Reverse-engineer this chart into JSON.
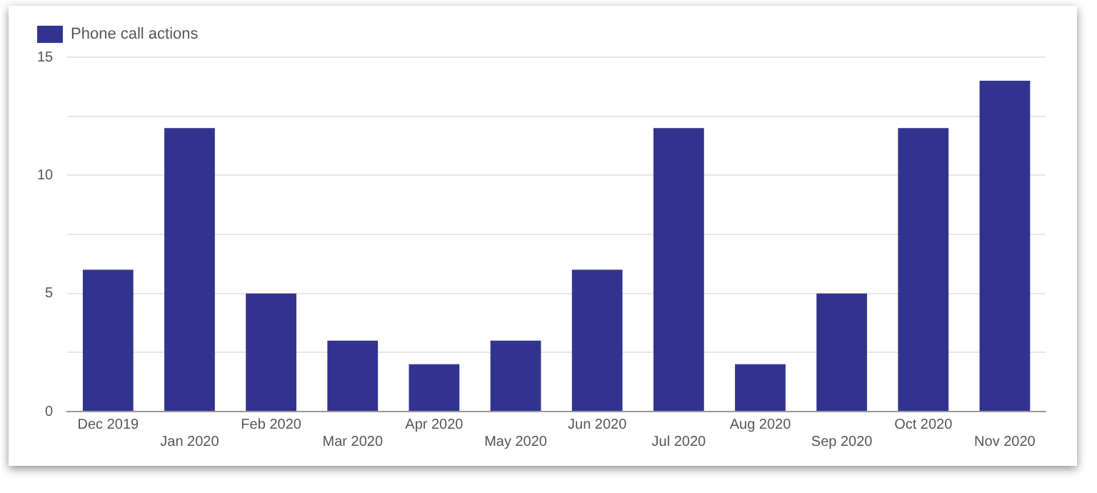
{
  "chart_data": {
    "type": "bar",
    "categories": [
      "Dec 2019",
      "Jan 2020",
      "Feb 2020",
      "Mar 2020",
      "Apr 2020",
      "May 2020",
      "Jun 2020",
      "Jul 2020",
      "Aug 2020",
      "Sep 2020",
      "Oct 2020",
      "Nov 2020"
    ],
    "series": [
      {
        "name": "Phone call actions",
        "color": "#32338f",
        "values": [
          6,
          12,
          5,
          3,
          2,
          3,
          6,
          12,
          2,
          5,
          12,
          14
        ]
      }
    ],
    "ylim": [
      0,
      15
    ],
    "yticks": [
      0,
      {
        "value": 2.5,
        "label": null
      },
      5,
      {
        "value": 7.5,
        "label": null
      },
      10,
      {
        "value": 12.5,
        "label": null
      },
      15
    ],
    "grid": "y",
    "legend": "top left"
  }
}
